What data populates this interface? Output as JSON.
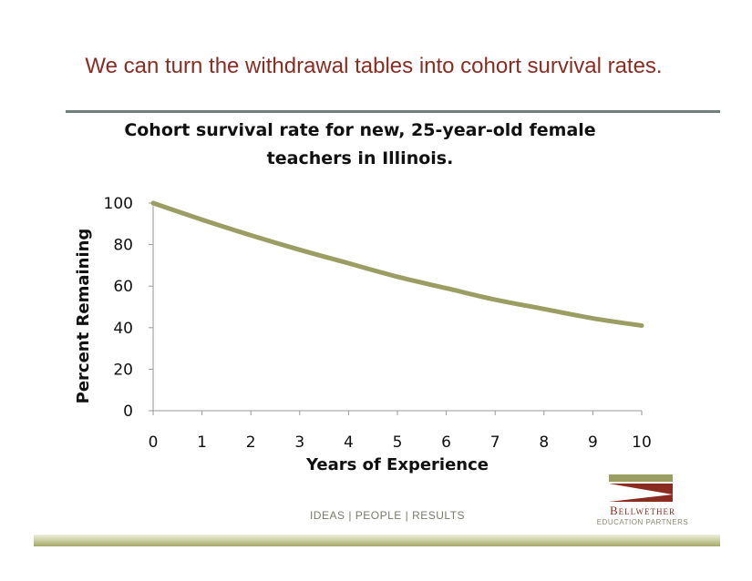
{
  "slide": {
    "title": "We can turn the withdrawal tables into cohort survival rates.",
    "footer": "IDEAS  |  PEOPLE  |  RESULTS",
    "logo": {
      "name": "Bellwether",
      "subtitle": "EDUCATION PARTNERS"
    }
  },
  "chart_data": {
    "type": "line",
    "title": "Cohort survival rate for new, 25-year-old female teachers in Illinois.",
    "xlabel": "Years of Experience",
    "ylabel": "Percent Remaining",
    "x": [
      0,
      1,
      2,
      3,
      4,
      5,
      6,
      7,
      8,
      9,
      10
    ],
    "xticks": [
      "0",
      "1",
      "2",
      "3",
      "4",
      "5",
      "6",
      "7",
      "8",
      "9",
      "10"
    ],
    "yticks": [
      "0",
      "20",
      "40",
      "60",
      "80",
      "100"
    ],
    "ylim": [
      0,
      100
    ],
    "xlim": [
      0,
      10
    ],
    "grid": false,
    "series": [
      {
        "values": [
          100,
          92,
          84.5,
          77.5,
          71,
          64.5,
          59,
          53.5,
          49,
          44.5,
          41
        ]
      }
    ],
    "line_color": "#9b9e62"
  }
}
